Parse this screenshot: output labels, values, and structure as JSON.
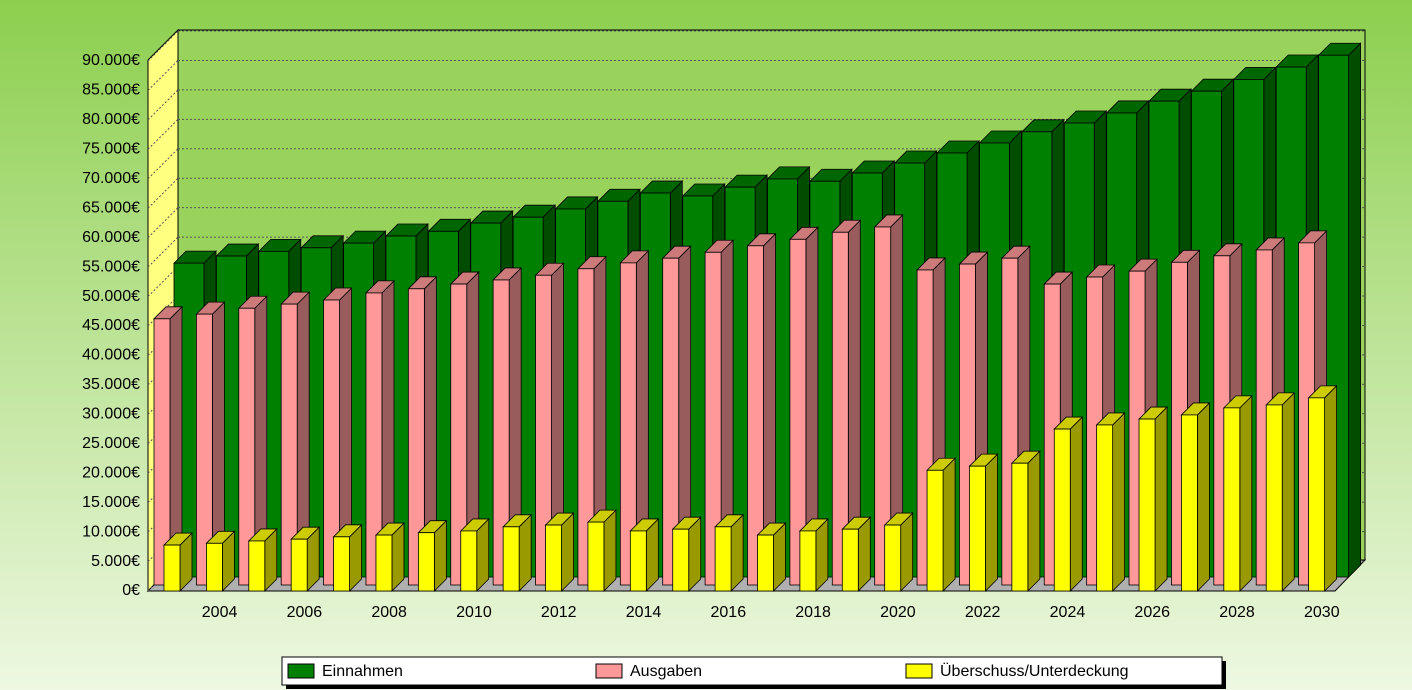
{
  "chart_data": {
    "type": "bar3d",
    "categories": [
      null,
      "2004",
      null,
      "2006",
      null,
      "2008",
      null,
      "2010",
      null,
      "2012",
      null,
      "2014",
      null,
      "2016",
      null,
      "2018",
      null,
      "2020",
      null,
      "2022",
      null,
      "2024",
      null,
      "2026",
      null,
      "2028",
      null,
      "2030"
    ],
    "series": [
      {
        "name": "Einnahmen",
        "color": "#008000",
        "values": [
          53300,
          54500,
          55300,
          55900,
          56700,
          57900,
          58700,
          60100,
          61100,
          62500,
          63800,
          65200,
          64700,
          66200,
          67600,
          67200,
          68600,
          70300,
          72000,
          73700,
          75600,
          77100,
          78800,
          80800,
          82500,
          84500,
          86600,
          88600
        ]
      },
      {
        "name": "Ausgaben",
        "color": "#ff9999",
        "values": [
          45200,
          46000,
          47000,
          47700,
          48400,
          49600,
          50300,
          51100,
          51800,
          52600,
          53700,
          54700,
          55500,
          56500,
          57600,
          58700,
          59900,
          60800,
          53500,
          54500,
          55500,
          51100,
          52300,
          53300,
          54800,
          55900,
          56900,
          58100
        ]
      },
      {
        "name": "Überschuss/Unterdeckung",
        "color": "#ffff00",
        "values": [
          7800,
          8100,
          8500,
          8800,
          9200,
          9500,
          9900,
          10200,
          10900,
          11200,
          11700,
          10200,
          10500,
          10900,
          9500,
          10200,
          10500,
          11200,
          20500,
          21200,
          21700,
          27500,
          28200,
          29200,
          29900,
          31100,
          31600,
          32800
        ]
      }
    ],
    "ylim": [
      0,
      90000
    ],
    "yticks": [
      {
        "value": 0,
        "label": "0€"
      },
      {
        "value": 5000,
        "label": "5.000€"
      },
      {
        "value": 10000,
        "label": "10.000€"
      },
      {
        "value": 15000,
        "label": "15.000€"
      },
      {
        "value": 20000,
        "label": "20.000€"
      },
      {
        "value": 25000,
        "label": "25.000€"
      },
      {
        "value": 30000,
        "label": "30.000€"
      },
      {
        "value": 35000,
        "label": "35.000€"
      },
      {
        "value": 40000,
        "label": "40.000€"
      },
      {
        "value": 45000,
        "label": "45.000€"
      },
      {
        "value": 50000,
        "label": "50.000€"
      },
      {
        "value": 55000,
        "label": "55.000€"
      },
      {
        "value": 60000,
        "label": "60.000€"
      },
      {
        "value": 65000,
        "label": "65.000€"
      },
      {
        "value": 70000,
        "label": "70.000€"
      },
      {
        "value": 75000,
        "label": "75.000€"
      },
      {
        "value": 80000,
        "label": "80.000€"
      },
      {
        "value": 85000,
        "label": "85.000€"
      },
      {
        "value": 90000,
        "label": "90.000€"
      }
    ],
    "grid": true
  }
}
